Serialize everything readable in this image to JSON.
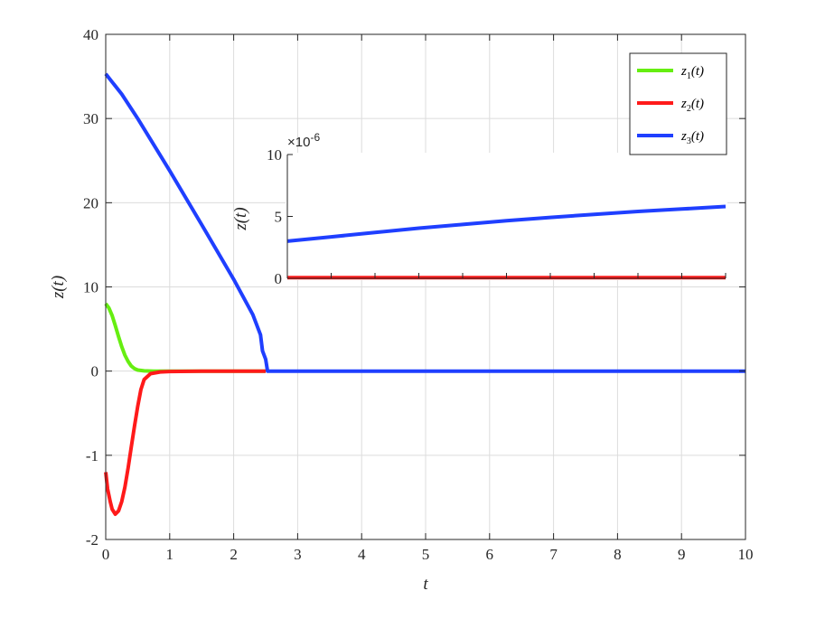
{
  "colors": {
    "z1": "#66ee11",
    "z2": "#ff1a1a",
    "z3": "#1f3fff",
    "grid": "#dcdcdc",
    "axis": "#262626"
  },
  "chart_data": [
    {
      "type": "line",
      "role": "main",
      "xlabel": "t",
      "ylabel": "z(t)",
      "xlim": [
        0,
        10
      ],
      "ylim_display": [
        "-2",
        "40"
      ],
      "scale_note": "piecewise y-axis: ticks -2,-1,0 then 10,20,30,40 equally spaced",
      "y_ticks": [
        -2,
        -1,
        0,
        10,
        20,
        30,
        40
      ],
      "y_tick_labels": [
        "-2",
        "-1",
        "0",
        "10",
        "20",
        "30",
        "40"
      ],
      "x_ticks": [
        0,
        1,
        2,
        3,
        4,
        5,
        6,
        7,
        8,
        9,
        10
      ],
      "x_tick_labels": [
        "0",
        "1",
        "2",
        "3",
        "4",
        "5",
        "6",
        "7",
        "8",
        "9",
        "10"
      ],
      "grid": true,
      "legend": {
        "position": "top-right",
        "entries": [
          {
            "base": "z",
            "sub": "1",
            "arg": "(t)"
          },
          {
            "base": "z",
            "sub": "2",
            "arg": "(t)"
          },
          {
            "base": "z",
            "sub": "3",
            "arg": "(t)"
          }
        ]
      },
      "series": [
        {
          "name": "z1(t)",
          "color_key": "z1",
          "points": [
            [
              0,
              8
            ],
            [
              0.05,
              7.5
            ],
            [
              0.1,
              6.6
            ],
            [
              0.15,
              5.4
            ],
            [
              0.2,
              4.1
            ],
            [
              0.25,
              2.9
            ],
            [
              0.3,
              1.9
            ],
            [
              0.35,
              1.15
            ],
            [
              0.4,
              0.6
            ],
            [
              0.45,
              0.3
            ],
            [
              0.5,
              0.12
            ],
            [
              0.6,
              0.03
            ],
            [
              0.75,
              0
            ],
            [
              1.2,
              0
            ],
            [
              2.0,
              0
            ],
            [
              2.5,
              0
            ]
          ]
        },
        {
          "name": "z2(t)",
          "color_key": "z2",
          "points": [
            [
              0,
              -1.2
            ],
            [
              0.03,
              -1.4
            ],
            [
              0.07,
              -1.55
            ],
            [
              0.1,
              -1.64
            ],
            [
              0.15,
              -1.7
            ],
            [
              0.2,
              -1.66
            ],
            [
              0.25,
              -1.55
            ],
            [
              0.3,
              -1.38
            ],
            [
              0.35,
              -1.15
            ],
            [
              0.4,
              -0.9
            ],
            [
              0.45,
              -0.65
            ],
            [
              0.5,
              -0.42
            ],
            [
              0.55,
              -0.22
            ],
            [
              0.6,
              -0.1
            ],
            [
              0.7,
              -0.03
            ],
            [
              0.85,
              -0.01
            ],
            [
              1.0,
              -0.005
            ],
            [
              1.5,
              0
            ],
            [
              2.5,
              0
            ]
          ]
        },
        {
          "name": "z3(t)",
          "color_key": "z3",
          "points": [
            [
              0,
              35.3
            ],
            [
              0.25,
              32.9
            ],
            [
              0.5,
              30.0
            ],
            [
              1.0,
              23.8
            ],
            [
              1.5,
              17.4
            ],
            [
              2.0,
              10.9
            ],
            [
              2.3,
              6.7
            ],
            [
              2.42,
              4.3
            ],
            [
              2.45,
              2.4
            ],
            [
              2.5,
              1.4
            ],
            [
              2.53,
              0
            ],
            [
              3,
              0
            ],
            [
              5,
              0
            ],
            [
              7,
              0
            ],
            [
              10,
              0
            ]
          ]
        }
      ]
    },
    {
      "type": "line",
      "role": "inset",
      "ylabel": "z(t)",
      "ylim": [
        0,
        10
      ],
      "y_ticks": [
        0,
        5,
        10
      ],
      "y_tick_labels": [
        "0",
        "5",
        "10"
      ],
      "exponent_label": "×10",
      "exponent_power": "-6",
      "grid": false,
      "series": [
        {
          "name": "z2(t)",
          "color_key": "z2",
          "points": [
            [
              0,
              0.05
            ],
            [
              1,
              0.05
            ]
          ]
        },
        {
          "name": "z3(t)",
          "color_key": "z3",
          "points": [
            [
              0,
              3.0
            ],
            [
              0.1,
              3.35
            ],
            [
              0.2,
              3.7
            ],
            [
              0.3,
              4.05
            ],
            [
              0.4,
              4.35
            ],
            [
              0.5,
              4.65
            ],
            [
              0.6,
              4.92
            ],
            [
              0.7,
              5.17
            ],
            [
              0.8,
              5.4
            ],
            [
              0.9,
              5.6
            ],
            [
              1.0,
              5.8
            ]
          ]
        }
      ]
    }
  ]
}
